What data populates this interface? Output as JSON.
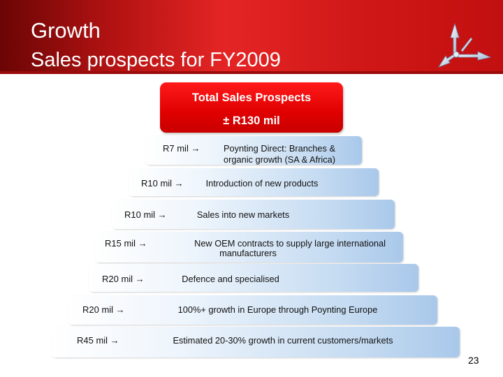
{
  "slide": {
    "title": "Growth",
    "subtitle": "Sales prospects for FY2009",
    "page_number": "23"
  },
  "total": {
    "label": "Total Sales Prospects",
    "value": "± R130 mil"
  },
  "tiers": [
    {
      "amount": "R7 mil →",
      "description_line1": "Poynting Direct: Branches &",
      "description_line2": "organic growth (SA & Africa)"
    },
    {
      "amount": "R10 mil →",
      "description_line1": "Introduction of new products",
      "description_line2": ""
    },
    {
      "amount": "R10 mil →",
      "description_line1": "Sales into new markets",
      "description_line2": ""
    },
    {
      "amount": "R15 mil →",
      "description_line1": "New OEM contracts to supply large international",
      "description_line2": "manufacturers"
    },
    {
      "amount": "R20 mil →",
      "description_line1": "Defence and specialised",
      "description_line2": ""
    },
    {
      "amount": "R20 mil →",
      "description_line1": "100%+ growth in Europe through Poynting Europe",
      "description_line2": ""
    },
    {
      "amount": "R45 mil →",
      "description_line1": "Estimated 20-30% growth in current customers/markets",
      "description_line2": ""
    }
  ],
  "colors": {
    "header_red": "#d11818",
    "total_box_red": "#e00000",
    "tier_blue": "#a9c8ea"
  },
  "icons": {
    "logo": "poynting-antenna-logo"
  }
}
